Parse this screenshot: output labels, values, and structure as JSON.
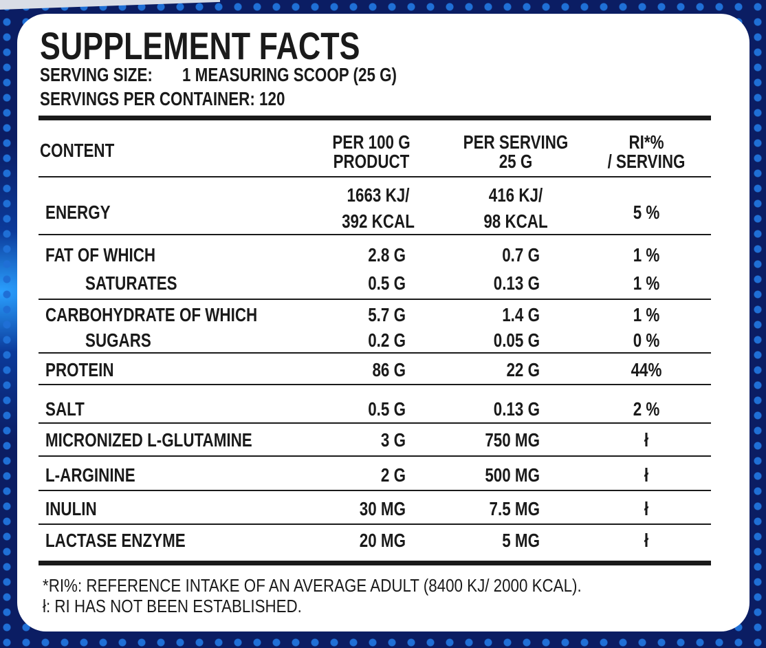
{
  "title": "SUPPLEMENT FACTS",
  "serving_size_label": "SERVING SIZE:",
  "serving_size": "1 MEASURING SCOOP (25 G)",
  "servings_per_container": "SERVINGS PER CONTAINER: 120",
  "headers": {
    "content": "CONTENT",
    "per100_1": "PER 100 G",
    "per100_2": "PRODUCT",
    "perserv_1": "PER SERVING",
    "perserv_2": "25 G",
    "ri_1": "RI*%",
    "ri_2": "/ SERVING"
  },
  "energy": {
    "name": "ENERGY",
    "per100_1": "1663 KJ/",
    "per100_2": "392 KCAL",
    "perserv_1": "416 KJ/",
    "perserv_2": "98 KCAL",
    "ri": "5 %"
  },
  "rows": [
    {
      "name": "FAT OF WHICH",
      "per100": "2.8 G",
      "perserv": "0.7 G",
      "ri": "1 %"
    },
    {
      "name": "SATURATES",
      "per100": "0.5 G",
      "perserv": "0.13 G",
      "ri": "1 %"
    },
    {
      "name": "CARBOHYDRATE OF WHICH",
      "per100": "5.7 G",
      "perserv": "1.4 G",
      "ri": "1 %"
    },
    {
      "name": "SUGARS",
      "per100": "0.2 G",
      "perserv": "0.05 G",
      "ri": "0 %"
    },
    {
      "name": "PROTEIN",
      "per100": "86 G",
      "perserv": "22 G",
      "ri": "44%"
    },
    {
      "name": "SALT",
      "per100": "0.5 G",
      "perserv": "0.13 G",
      "ri": "2 %"
    },
    {
      "name": "MICRONIZED L-GLUTAMINE",
      "per100": "3 G",
      "perserv": "750 MG",
      "ri": "ł"
    },
    {
      "name": "L-ARGININE",
      "per100": "2 G",
      "perserv": "500 MG",
      "ri": "ł"
    },
    {
      "name": "INULIN",
      "per100": "30 MG",
      "perserv": "7.5 MG",
      "ri": "ł"
    },
    {
      "name": "LACTASE ENZYME",
      "per100": "20 MG",
      "perserv": "5 MG",
      "ri": "ł"
    }
  ],
  "footnotes": [
    "*RI%: REFERENCE INTAKE OF AN AVERAGE ADULT (8400 KJ/ 2000 KCAL).",
    "ł: RI HAS NOT BEEN ESTABLISHED."
  ]
}
